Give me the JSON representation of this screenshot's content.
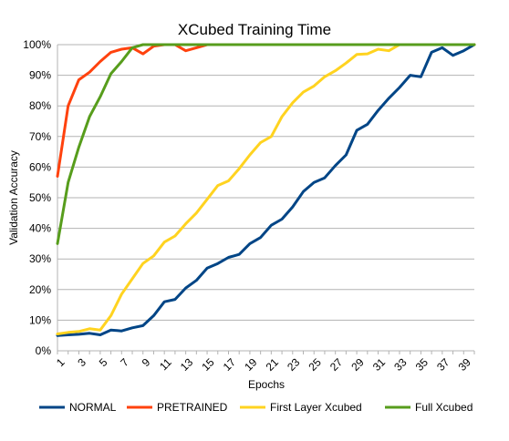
{
  "chart_data": {
    "type": "line",
    "title": "XCubed Training Time",
    "xlabel": "Epochs",
    "ylabel": "Validation Accuracy",
    "ylim": [
      0,
      100
    ],
    "y_ticks": [
      "0%",
      "10%",
      "20%",
      "30%",
      "40%",
      "50%",
      "60%",
      "70%",
      "80%",
      "90%",
      "100%"
    ],
    "x": [
      1,
      2,
      3,
      4,
      5,
      6,
      7,
      8,
      9,
      10,
      11,
      12,
      13,
      14,
      15,
      16,
      17,
      18,
      19,
      20,
      21,
      22,
      23,
      24,
      25,
      26,
      27,
      28,
      29,
      30,
      31,
      32,
      33,
      34,
      35,
      36,
      37,
      38,
      39,
      40
    ],
    "x_tick_labels": [
      "1",
      "3",
      "5",
      "7",
      "9",
      "11",
      "13",
      "15",
      "17",
      "19",
      "21",
      "23",
      "25",
      "27",
      "29",
      "31",
      "33",
      "35",
      "37",
      "39"
    ],
    "grid": "horizontal",
    "legend_position": "bottom",
    "series": [
      {
        "name": "NORMAL",
        "color": "#004586",
        "values": [
          5.0,
          5.2,
          5.4,
          5.7,
          5.2,
          6.8,
          6.5,
          7.5,
          8.2,
          11.5,
          16.0,
          16.8,
          20.5,
          23.0,
          27.0,
          28.5,
          30.5,
          31.5,
          35.0,
          37.0,
          41.0,
          43.0,
          47.0,
          52.0,
          55.0,
          56.5,
          60.5,
          64.0,
          72.0,
          74.0,
          78.5,
          82.5,
          86.0,
          90.0,
          89.5,
          97.5,
          99.0,
          96.5,
          98.0,
          100.0
        ]
      },
      {
        "name": "PRETRAINED",
        "color": "#ff420e",
        "values": [
          57.0,
          80.0,
          88.5,
          91.0,
          94.5,
          97.5,
          98.5,
          99.0,
          97.0,
          99.5,
          100.0,
          100.0,
          98.0,
          99.0,
          100.0,
          100.0,
          100.0,
          100.0,
          100.0,
          100.0,
          100.0,
          100.0,
          100.0,
          100.0,
          100.0,
          100.0,
          100.0,
          100.0,
          100.0,
          100.0,
          100.0,
          100.0,
          100.0,
          100.0,
          100.0,
          100.0,
          100.0,
          100.0,
          100.0,
          100.0
        ]
      },
      {
        "name": "First Layer Xcubed",
        "color": "#ffd320",
        "values": [
          5.5,
          6.0,
          6.3,
          7.2,
          6.8,
          11.5,
          18.5,
          23.5,
          28.5,
          31.0,
          35.5,
          37.5,
          41.5,
          45.0,
          49.5,
          54.0,
          55.5,
          59.5,
          64.0,
          68.0,
          70.0,
          76.5,
          81.0,
          84.5,
          86.5,
          89.5,
          91.5,
          94.0,
          96.8,
          97.0,
          98.5,
          98.0,
          100.0,
          100.0,
          100.0,
          100.0,
          100.0,
          100.0,
          100.0,
          100.0
        ]
      },
      {
        "name": "Full Xcubed",
        "color": "#579d1c",
        "values": [
          35.0,
          55.0,
          66.5,
          76.5,
          83.0,
          90.5,
          94.5,
          99.0,
          100.0,
          100.0,
          100.0,
          100.0,
          100.0,
          100.0,
          100.0,
          100.0,
          100.0,
          100.0,
          100.0,
          100.0,
          100.0,
          100.0,
          100.0,
          100.0,
          100.0,
          100.0,
          100.0,
          100.0,
          100.0,
          100.0,
          100.0,
          100.0,
          100.0,
          100.0,
          100.0,
          100.0,
          100.0,
          100.0,
          100.0,
          100.0
        ]
      }
    ]
  }
}
